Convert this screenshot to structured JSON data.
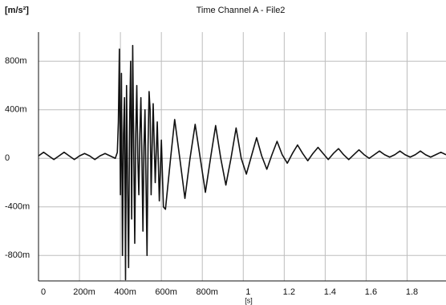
{
  "chart_data": {
    "type": "line",
    "title": "Time Channel A - File2",
    "y_label": "[m/s²]",
    "x_label": "[s]",
    "color": "#111111",
    "grid": true,
    "xlim": [
      0,
      1.99
    ],
    "ylim": [
      -1.01,
      1.04
    ],
    "xticks": [
      0,
      {
        "value": 0.2,
        "label": "200m"
      },
      {
        "value": 0.4,
        "label": "400m"
      },
      {
        "value": 0.6,
        "label": "600m"
      },
      {
        "value": 0.8,
        "label": "800m"
      },
      1,
      1.2,
      1.4,
      1.6,
      1.8
    ],
    "yticks": [
      {
        "value": -0.8,
        "label": "-800m"
      },
      {
        "value": -0.4,
        "label": "-400m"
      },
      0,
      {
        "value": 0.4,
        "label": "400m"
      },
      {
        "value": 0.8,
        "label": "800m"
      }
    ],
    "x": [
      0,
      0.025,
      0.05,
      0.075,
      0.1,
      0.125,
      0.15,
      0.175,
      0.2,
      0.225,
      0.25,
      0.275,
      0.3,
      0.325,
      0.35,
      0.375,
      0.385,
      0.39,
      0.395,
      0.4,
      0.405,
      0.41,
      0.415,
      0.42,
      0.425,
      0.43,
      0.435,
      0.44,
      0.445,
      0.45,
      0.455,
      0.46,
      0.465,
      0.47,
      0.475,
      0.48,
      0.485,
      0.49,
      0.495,
      0.5,
      0.505,
      0.51,
      0.515,
      0.52,
      0.525,
      0.53,
      0.535,
      0.54,
      0.545,
      0.55,
      0.555,
      0.56,
      0.57,
      0.58,
      0.59,
      0.6,
      0.61,
      0.62,
      0.645,
      0.665,
      0.69,
      0.715,
      0.74,
      0.765,
      0.79,
      0.815,
      0.84,
      0.865,
      0.89,
      0.915,
      0.94,
      0.965,
      0.99,
      1.015,
      1.04,
      1.065,
      1.09,
      1.115,
      1.14,
      1.165,
      1.19,
      1.215,
      1.24,
      1.265,
      1.29,
      1.315,
      1.34,
      1.365,
      1.39,
      1.415,
      1.44,
      1.465,
      1.49,
      1.515,
      1.54,
      1.565,
      1.59,
      1.615,
      1.64,
      1.665,
      1.69,
      1.715,
      1.74,
      1.765,
      1.79,
      1.815,
      1.84,
      1.865,
      1.89,
      1.915,
      1.94,
      1.965,
      1.99
    ],
    "values": [
      0.02,
      0.05,
      0.02,
      -0.01,
      0.02,
      0.05,
      0.02,
      -0.01,
      0.02,
      0.04,
      0.02,
      -0.01,
      0.02,
      0.04,
      0.02,
      0.0,
      0.05,
      0.3,
      0.9,
      -0.3,
      0.7,
      -0.8,
      0.2,
      0.5,
      -1.0,
      0.6,
      -0.2,
      -0.9,
      0.3,
      0.8,
      -0.5,
      0.93,
      0.1,
      -0.7,
      0.2,
      0.6,
      0.0,
      -0.3,
      0.2,
      0.5,
      0.0,
      -0.6,
      0.1,
      0.4,
      -0.2,
      -0.8,
      0.1,
      0.55,
      0.4,
      -0.3,
      0.1,
      0.45,
      -0.2,
      0.3,
      -0.35,
      0.15,
      -0.4,
      -0.42,
      0.0,
      0.32,
      0.0,
      -0.33,
      0.0,
      0.28,
      0.0,
      -0.28,
      0.0,
      0.27,
      0.0,
      -0.22,
      0.0,
      0.25,
      0.0,
      -0.13,
      0.02,
      0.17,
      0.02,
      -0.09,
      0.03,
      0.14,
      0.03,
      -0.04,
      0.04,
      0.11,
      0.04,
      -0.02,
      0.04,
      0.09,
      0.04,
      -0.01,
      0.04,
      0.08,
      0.03,
      -0.01,
      0.03,
      0.07,
      0.03,
      0.0,
      0.03,
      0.06,
      0.03,
      0.01,
      0.03,
      0.06,
      0.03,
      0.01,
      0.03,
      0.06,
      0.03,
      0.01,
      0.03,
      0.05,
      0.03
    ]
  }
}
